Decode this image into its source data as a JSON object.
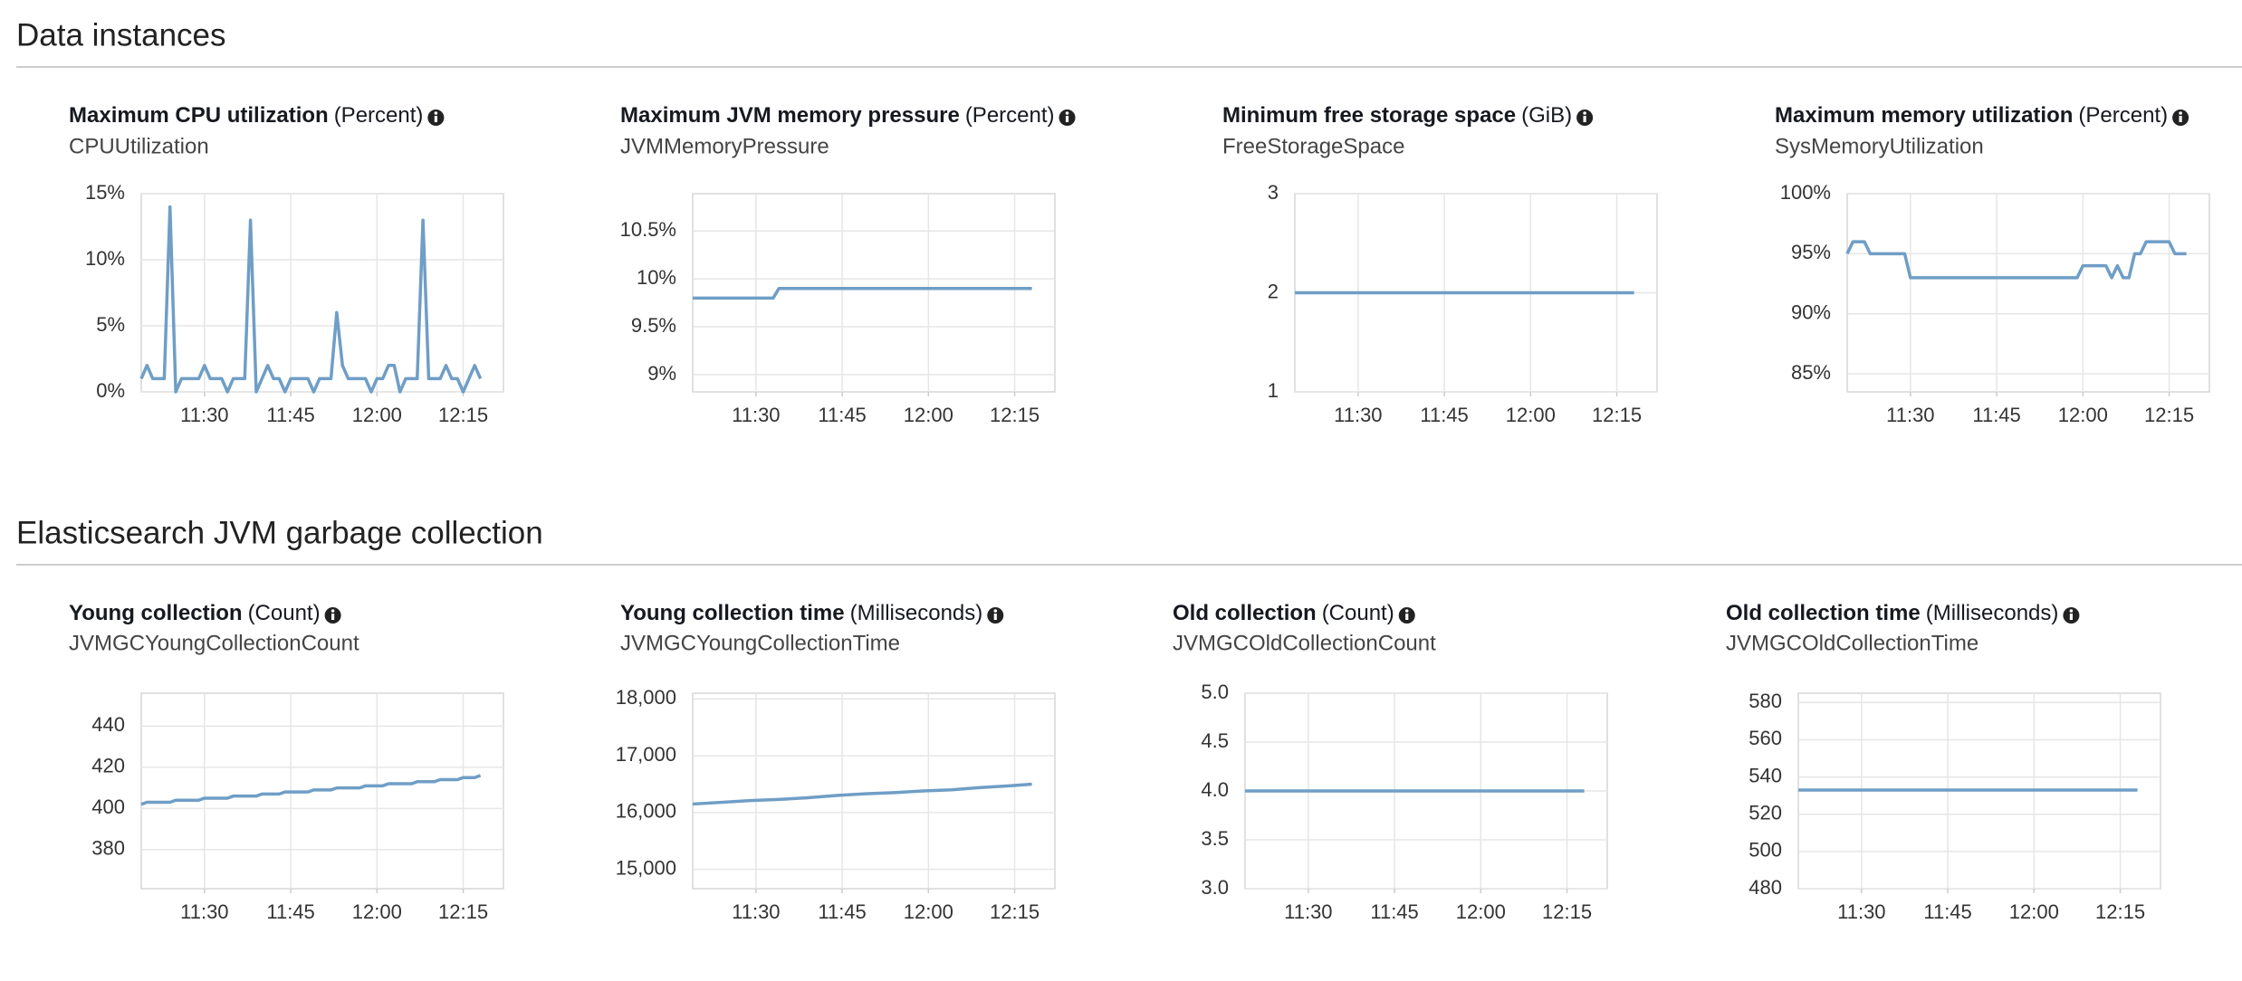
{
  "sections": [
    "Data instances",
    "Elasticsearch JVM garbage collection"
  ],
  "chart_data": [
    {
      "type": "line",
      "title": "Maximum CPU utilization",
      "unit": "(Percent)",
      "subtitle": "CPUUtilization",
      "color": "#6f9ec6",
      "grid": true,
      "x": [
        679,
        680,
        681,
        682,
        683,
        684,
        685,
        686,
        687,
        688,
        689,
        690,
        691,
        692,
        693,
        694,
        695,
        696,
        697,
        698,
        699,
        700,
        701,
        702,
        703,
        704,
        705,
        706,
        707,
        708,
        709,
        710,
        711,
        712,
        713,
        714,
        715,
        716,
        717,
        718,
        719,
        720,
        721,
        722,
        723,
        724,
        725,
        726,
        727,
        728,
        729,
        730,
        731,
        732,
        733,
        734,
        735,
        736,
        737,
        738
      ],
      "values": [
        1,
        2,
        1,
        1,
        1,
        14,
        0,
        1,
        1,
        1,
        1,
        2,
        1,
        1,
        1,
        0,
        1,
        1,
        1,
        13,
        0,
        1,
        2,
        1,
        1,
        0,
        1,
        1,
        1,
        1,
        0,
        1,
        1,
        1,
        6,
        2,
        1,
        1,
        1,
        1,
        0,
        1,
        1,
        2,
        2,
        0,
        1,
        1,
        1,
        13,
        1,
        1,
        1,
        2,
        1,
        1,
        0,
        1,
        2,
        1
      ],
      "xlim": [
        679,
        742
      ],
      "xticks": [
        {
          "value": 690,
          "label": "11:30"
        },
        {
          "value": 705,
          "label": "11:45"
        },
        {
          "value": 720,
          "label": "12:00"
        },
        {
          "value": 735,
          "label": "12:15"
        }
      ],
      "ylim": [
        0,
        15
      ],
      "yticks": [
        {
          "value": 0,
          "label": "0%"
        },
        {
          "value": 5,
          "label": "5%"
        },
        {
          "value": 10,
          "label": "10%"
        },
        {
          "value": 15,
          "label": "15%"
        }
      ]
    },
    {
      "type": "line",
      "title": "Maximum JVM memory pressure",
      "unit": "(Percent)",
      "subtitle": "JVMMemoryPressure",
      "color": "#6f9ec6",
      "grid": true,
      "x": [
        679,
        693,
        694,
        738
      ],
      "values": [
        9.8,
        9.8,
        9.9,
        9.9
      ],
      "xlim": [
        679,
        742
      ],
      "xticks": [
        {
          "value": 690,
          "label": "11:30"
        },
        {
          "value": 705,
          "label": "11:45"
        },
        {
          "value": 720,
          "label": "12:00"
        },
        {
          "value": 735,
          "label": "12:15"
        }
      ],
      "ylim": [
        8.82,
        10.89
      ],
      "yticks": [
        {
          "value": 9,
          "label": "9%"
        },
        {
          "value": 9.5,
          "label": "9.5%"
        },
        {
          "value": 10,
          "label": "10%"
        },
        {
          "value": 10.5,
          "label": "10.5%"
        }
      ]
    },
    {
      "type": "line",
      "title": "Minimum free storage space",
      "unit": "(GiB)",
      "subtitle": "FreeStorageSpace",
      "color": "#6f9ec6",
      "grid": true,
      "x": [
        679,
        738
      ],
      "values": [
        2,
        2
      ],
      "xlim": [
        679,
        742
      ],
      "xticks": [
        {
          "value": 690,
          "label": "11:30"
        },
        {
          "value": 705,
          "label": "11:45"
        },
        {
          "value": 720,
          "label": "12:00"
        },
        {
          "value": 735,
          "label": "12:15"
        }
      ],
      "ylim": [
        1,
        3
      ],
      "yticks": [
        1,
        2,
        3
      ]
    },
    {
      "type": "line",
      "title": "Maximum memory utilization",
      "unit": "(Percent)",
      "subtitle": "SysMemoryUtilization",
      "color": "#6f9ec6",
      "grid": true,
      "x": [
        679,
        680,
        682,
        683,
        689,
        690,
        719,
        720,
        724,
        725,
        726,
        727,
        728,
        729,
        730,
        731,
        735,
        736,
        738
      ],
      "values": [
        95,
        96,
        96,
        95,
        95,
        93,
        93,
        94,
        94,
        93,
        94,
        93,
        93,
        95,
        95,
        96,
        96,
        95,
        95
      ],
      "xlim": [
        679,
        742
      ],
      "xticks": [
        {
          "value": 690,
          "label": "11:30"
        },
        {
          "value": 705,
          "label": "11:45"
        },
        {
          "value": 720,
          "label": "12:00"
        },
        {
          "value": 735,
          "label": "12:15"
        }
      ],
      "ylim": [
        83.5,
        100
      ],
      "yticks": [
        {
          "value": 85,
          "label": "85%"
        },
        {
          "value": 90,
          "label": "90%"
        },
        {
          "value": 95,
          "label": "95%"
        },
        {
          "value": 100,
          "label": "100%"
        }
      ]
    },
    {
      "type": "line",
      "title": "Young collection",
      "unit": "(Count)",
      "subtitle": "JVMGCYoungCollectionCount",
      "color": "#6f9ec6",
      "grid": true,
      "x": [
        679,
        680,
        684,
        685,
        689,
        690,
        694,
        695,
        699,
        700,
        703,
        704,
        708,
        709,
        712,
        713,
        717,
        718,
        721,
        722,
        726,
        727,
        730,
        731,
        734,
        735,
        737,
        738
      ],
      "values": [
        402,
        403,
        403,
        404,
        404,
        405,
        405,
        406,
        406,
        407,
        407,
        408,
        408,
        409,
        409,
        410,
        410,
        411,
        411,
        412,
        412,
        413,
        413,
        414,
        414,
        415,
        415,
        416
      ],
      "xlim": [
        679,
        742
      ],
      "xticks": [
        {
          "value": 690,
          "label": "11:30"
        },
        {
          "value": 705,
          "label": "11:45"
        },
        {
          "value": 720,
          "label": "12:00"
        },
        {
          "value": 735,
          "label": "12:15"
        }
      ],
      "ylim": [
        361,
        456
      ],
      "yticks": [
        380,
        400,
        420,
        440
      ]
    },
    {
      "type": "line",
      "title": "Young collection time",
      "unit": "(Milliseconds)",
      "subtitle": "JVMGCYoungCollectionTime",
      "color": "#6f9ec6",
      "grid": true,
      "x": [
        679,
        684,
        689,
        694,
        699,
        704,
        709,
        714,
        719,
        724,
        729,
        734,
        738
      ],
      "values": [
        16150,
        16180,
        16210,
        16230,
        16260,
        16300,
        16330,
        16350,
        16380,
        16400,
        16440,
        16470,
        16500
      ],
      "xlim": [
        679,
        742
      ],
      "xticks": [
        {
          "value": 690,
          "label": "11:30"
        },
        {
          "value": 705,
          "label": "11:45"
        },
        {
          "value": 720,
          "label": "12:00"
        },
        {
          "value": 735,
          "label": "12:15"
        }
      ],
      "ylim": [
        14660,
        18100
      ],
      "yticks": [
        {
          "value": 15000,
          "label": "15,000"
        },
        {
          "value": 16000,
          "label": "16,000"
        },
        {
          "value": 17000,
          "label": "17,000"
        },
        {
          "value": 18000,
          "label": "18,000"
        }
      ]
    },
    {
      "type": "line",
      "title": "Old collection",
      "unit": "(Count)",
      "subtitle": "JVMGCOldCollectionCount",
      "color": "#6f9ec6",
      "grid": true,
      "x": [
        679,
        738
      ],
      "values": [
        4,
        4
      ],
      "xlim": [
        679,
        742
      ],
      "xticks": [
        {
          "value": 690,
          "label": "11:30"
        },
        {
          "value": 705,
          "label": "11:45"
        },
        {
          "value": 720,
          "label": "12:00"
        },
        {
          "value": 735,
          "label": "12:15"
        }
      ],
      "ylim": [
        3,
        5
      ],
      "yticks": [
        {
          "value": 3,
          "label": "3.0"
        },
        {
          "value": 3.5,
          "label": "3.5"
        },
        {
          "value": 4,
          "label": "4.0"
        },
        {
          "value": 4.5,
          "label": "4.5"
        },
        {
          "value": 5,
          "label": "5.0"
        }
      ]
    },
    {
      "type": "line",
      "title": "Old collection time",
      "unit": "(Milliseconds)",
      "subtitle": "JVMGCOldCollectionTime",
      "color": "#6f9ec6",
      "grid": true,
      "x": [
        679,
        738
      ],
      "values": [
        533,
        533
      ],
      "xlim": [
        679,
        742
      ],
      "xticks": [
        {
          "value": 690,
          "label": "11:30"
        },
        {
          "value": 705,
          "label": "11:45"
        },
        {
          "value": 720,
          "label": "12:00"
        },
        {
          "value": 735,
          "label": "12:15"
        }
      ],
      "ylim": [
        480,
        585
      ],
      "yticks": [
        480,
        500,
        520,
        540,
        560,
        580
      ]
    }
  ]
}
